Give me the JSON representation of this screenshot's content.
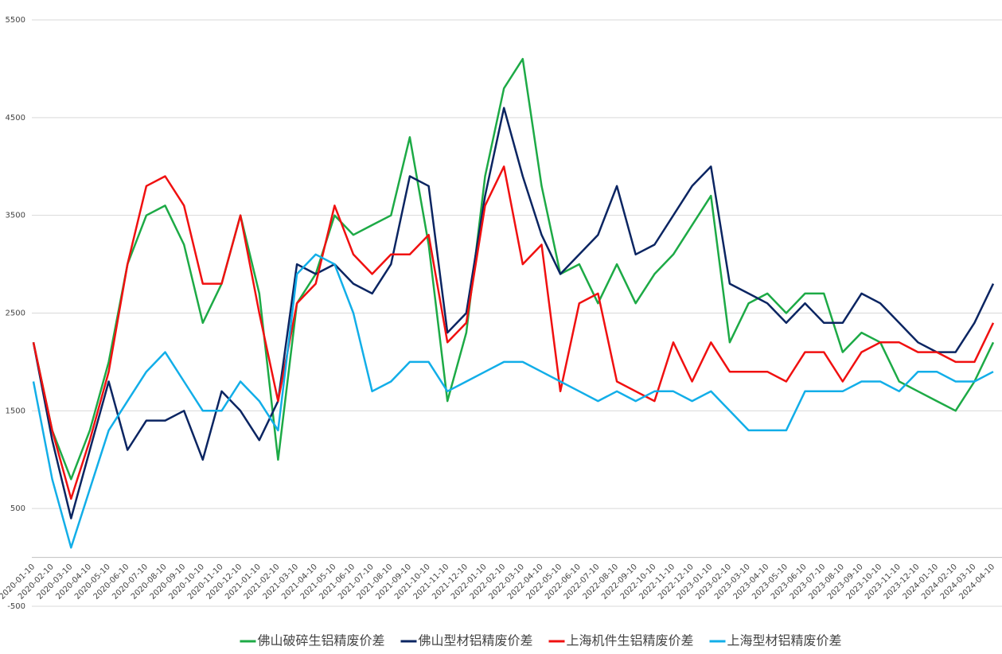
{
  "chart_data": {
    "type": "line",
    "categories": [
      "2020-01-10",
      "2020-02-10",
      "2020-03-10",
      "2020-04-10",
      "2020-05-10",
      "2020-06-10",
      "2020-07-10",
      "2020-08-10",
      "2020-09-10",
      "2020-10-10",
      "2020-11-10",
      "2020-12-10",
      "2021-01-10",
      "2021-02-10",
      "2021-03-10",
      "2021-04-10",
      "2021-05-10",
      "2021-06-10",
      "2021-07-10",
      "2021-08-10",
      "2021-09-10",
      "2021-10-10",
      "2021-11-10",
      "2021-12-10",
      "2022-01-10",
      "2022-02-10",
      "2022-03-10",
      "2022-04-10",
      "2022-05-10",
      "2022-06-10",
      "2022-07-10",
      "2022-08-10",
      "2022-09-10",
      "2022-10-10",
      "2022-11-10",
      "2022-12-10",
      "2023-01-10",
      "2023-02-10",
      "2023-03-10",
      "2023-04-10",
      "2023-05-10",
      "2023-06-10",
      "2023-07-10",
      "2023-08-10",
      "2023-09-10",
      "2023-10-10",
      "2023-11-10",
      "2023-12-10",
      "2024-01-10",
      "2024-02-10",
      "2024-03-10",
      "2024-04-10"
    ],
    "series": [
      {
        "name": "佛山破碎生铝精废价差",
        "color": "#1daa46",
        "values": [
          2200,
          1300,
          800,
          1300,
          2000,
          3000,
          3500,
          3600,
          3200,
          2400,
          2800,
          3500,
          2700,
          1000,
          2600,
          2900,
          3500,
          3300,
          3400,
          3500,
          4300,
          3200,
          1600,
          2300,
          3900,
          4800,
          5100,
          3800,
          2900,
          3000,
          2600,
          3000,
          2600,
          2900,
          3100,
          3400,
          3700,
          2200,
          2600,
          2700,
          2500,
          2700,
          2700,
          2100,
          2300,
          2200,
          1800,
          1700,
          1600,
          1500,
          1800,
          2200
        ]
      },
      {
        "name": "佛山型材铝精废价差",
        "color": "#0b2562",
        "values": [
          2200,
          1200,
          400,
          1100,
          1800,
          1100,
          1400,
          1400,
          1500,
          1000,
          1700,
          1500,
          1200,
          1600,
          3000,
          2900,
          3000,
          2800,
          2700,
          3000,
          3900,
          3800,
          2300,
          2500,
          3700,
          4600,
          3900,
          3300,
          2900,
          3100,
          3300,
          3800,
          3100,
          3200,
          3500,
          3800,
          4000,
          2800,
          2700,
          2600,
          2400,
          2600,
          2400,
          2400,
          2700,
          2600,
          2400,
          2200,
          2100,
          2100,
          2400,
          2800
        ]
      },
      {
        "name": "上海机件生铝精废价差",
        "color": "#f01010",
        "values": [
          2200,
          1300,
          600,
          1200,
          1900,
          3000,
          3800,
          3900,
          3600,
          2800,
          2800,
          3500,
          2500,
          1600,
          2600,
          2800,
          3600,
          3100,
          2900,
          3100,
          3100,
          3300,
          2200,
          2400,
          3600,
          4000,
          3000,
          3200,
          1700,
          2600,
          2700,
          1800,
          1700,
          1600,
          2200,
          1800,
          2200,
          1900,
          1900,
          1900,
          1800,
          2100,
          2100,
          1800,
          2100,
          2200,
          2200,
          2100,
          2100,
          2000,
          2000,
          2400
        ]
      },
      {
        "name": "上海型材铝精废价差",
        "color": "#12aee8",
        "values": [
          1800,
          800,
          100,
          700,
          1300,
          1600,
          1900,
          2100,
          1800,
          1500,
          1500,
          1800,
          1600,
          1300,
          2900,
          3100,
          3000,
          2500,
          1700,
          1800,
          2000,
          2000,
          1700,
          1800,
          1900,
          2000,
          2000,
          1900,
          1800,
          1700,
          1600,
          1700,
          1600,
          1700,
          1700,
          1600,
          1700,
          1500,
          1300,
          1300,
          1300,
          1700,
          1700,
          1700,
          1800,
          1800,
          1700,
          1900,
          1900,
          1800,
          1800,
          1900
        ]
      }
    ],
    "ylim": [
      -500,
      5500
    ],
    "yticks": [
      -500,
      500,
      1500,
      2500,
      3500,
      4500,
      5500
    ],
    "grid": true,
    "legend": "bottom"
  }
}
